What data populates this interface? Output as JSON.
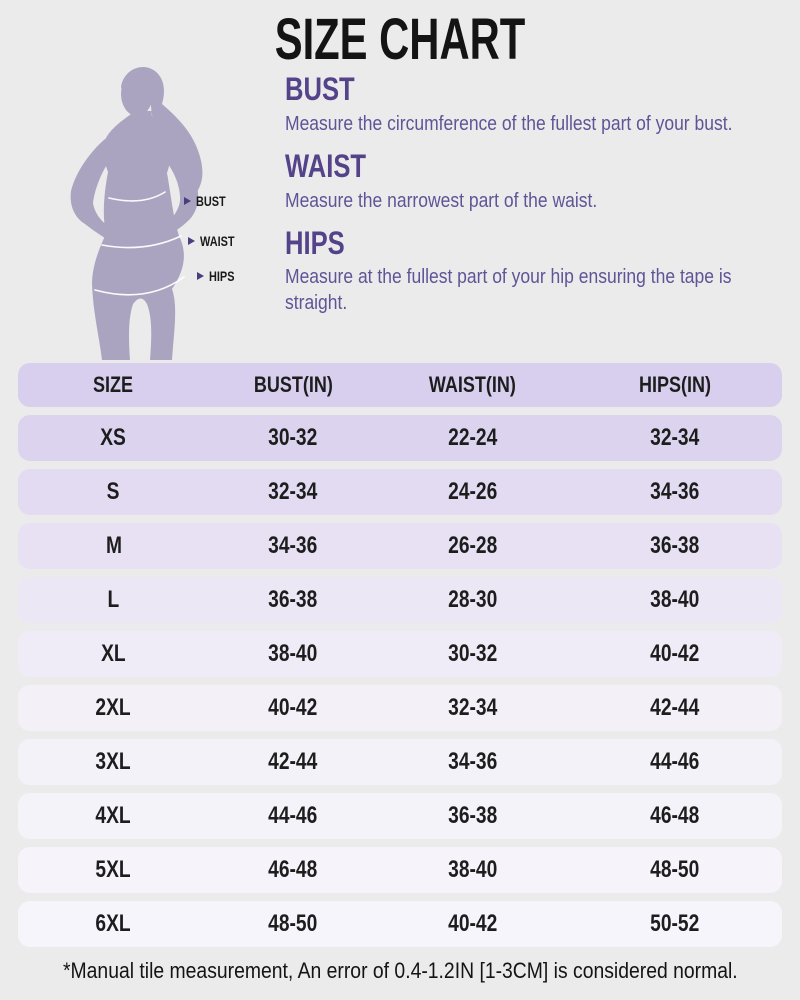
{
  "title": "SIZE CHART",
  "guide": {
    "figure_labels": [
      "BUST",
      "WAIST",
      "HIPS"
    ],
    "sections": [
      {
        "heading": "BUST",
        "description": "Measure the circumference of the fullest part of your bust."
      },
      {
        "heading": "WAIST",
        "description": "Measure the narrowest part of the waist."
      },
      {
        "heading": "HIPS",
        "description": "Measure at the fullest part of your hip ensuring the tape is straight."
      }
    ]
  },
  "chart_data": {
    "type": "table",
    "title": "SIZE CHART",
    "columns": [
      "SIZE",
      "BUST(IN)",
      "WAIST(IN)",
      "HIPS(IN)"
    ],
    "rows": [
      [
        "XS",
        "30-32",
        "22-24",
        "32-34"
      ],
      [
        "S",
        "32-34",
        "24-26",
        "34-36"
      ],
      [
        "M",
        "34-36",
        "26-28",
        "36-38"
      ],
      [
        "L",
        "36-38",
        "28-30",
        "38-40"
      ],
      [
        "XL",
        "38-40",
        "30-32",
        "40-42"
      ],
      [
        "2XL",
        "40-42",
        "32-34",
        "42-44"
      ],
      [
        "3XL",
        "42-44",
        "34-36",
        "44-46"
      ],
      [
        "4XL",
        "44-46",
        "36-38",
        "46-48"
      ],
      [
        "5XL",
        "46-48",
        "38-40",
        "48-50"
      ],
      [
        "6XL",
        "48-50",
        "40-42",
        "50-52"
      ]
    ]
  },
  "table_style": {
    "header_color": "#d8cfee",
    "row_colors": [
      "#dcd4ef",
      "#e2dbf1",
      "#e7e1f3",
      "#ece7f5",
      "#f0ecf7",
      "#f3f0f8",
      "#f4f2f9",
      "#f5f3fa",
      "#f6f4fa",
      "#f6f5fb"
    ]
  },
  "footnote": "*Manual tile measurement, An error of 0.4-1.2IN [1-3CM] is considered normal.",
  "colors": {
    "page_bg": "#ebebec",
    "title_text": "#141414",
    "accent_heading": "#544389",
    "description_text": "#5f5496",
    "silhouette": "#aba4c0",
    "marker": "#4b3d80",
    "label_text": "#1a1a1a",
    "cell_text": "#1d1d1d",
    "header_bg": "#d8cfee"
  }
}
